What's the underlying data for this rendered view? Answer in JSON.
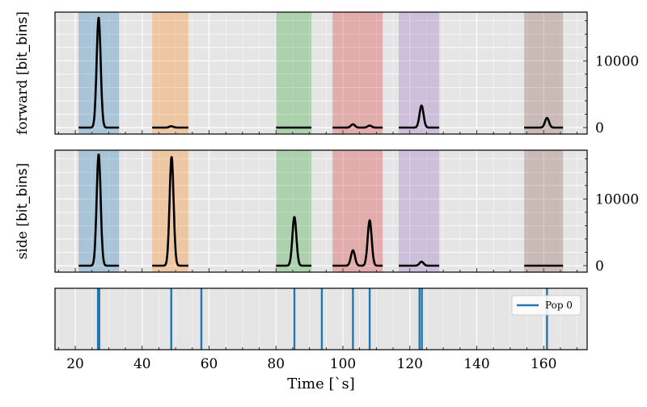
{
  "chart_data": [
    {
      "type": "line",
      "ylabel": "forward [bit_bins]",
      "ylabel_parts": [
        "forward [",
        "bit_bins",
        "]"
      ],
      "ylim": [
        -970,
        17300
      ],
      "yticks": [
        0,
        10000
      ],
      "ytick_labels": [
        "0",
        "10000"
      ],
      "peaks": [
        {
          "x": 27.0,
          "height": 16500
        },
        {
          "x": 48.7,
          "height": 200
        },
        {
          "x": 103.0,
          "height": 500
        },
        {
          "x": 108.0,
          "height": 300
        },
        {
          "x": 123.5,
          "height": 3300
        },
        {
          "x": 161.0,
          "height": 1450
        }
      ]
    },
    {
      "type": "line",
      "ylabel": "side [bit_bins]",
      "ylabel_parts": [
        "side [",
        "bit_bins",
        "]"
      ],
      "ylim": [
        -970,
        17300
      ],
      "yticks": [
        0,
        10000
      ],
      "ytick_labels": [
        "0",
        "10000"
      ],
      "peaks": [
        {
          "x": 27.0,
          "height": 16700
        },
        {
          "x": 48.8,
          "height": 16300
        },
        {
          "x": 85.5,
          "height": 7300
        },
        {
          "x": 103.0,
          "height": 2300
        },
        {
          "x": 108.0,
          "height": 6800
        },
        {
          "x": 123.5,
          "height": 600
        }
      ]
    },
    {
      "type": "event",
      "xlabel": "Time [`s]",
      "legend": {
        "label": "Pop 0",
        "placement": "top-right"
      },
      "events": [
        26.8,
        27.2,
        48.7,
        57.7,
        85.5,
        93.7,
        103.0,
        108.0,
        122.9,
        123.6,
        161.0
      ]
    }
  ],
  "shared": {
    "xlim": [
      13.95,
      173.0
    ],
    "xticks": [
      20,
      40,
      60,
      80,
      100,
      120,
      140,
      160
    ],
    "bands": [
      {
        "start": 21.0,
        "end": 33.1,
        "color": "#1f77b4"
      },
      {
        "start": 43.0,
        "end": 53.8,
        "color": "#ff7f0e"
      },
      {
        "start": 80.0,
        "end": 90.6,
        "color": "#2ca02c"
      },
      {
        "start": 96.9,
        "end": 111.9,
        "color": "#d62728"
      },
      {
        "start": 116.7,
        "end": 128.8,
        "color": "#9467bd"
      },
      {
        "start": 154.2,
        "end": 165.8,
        "color": "#8c564b"
      }
    ],
    "event_color": "#1f77b4",
    "background": "#e5e5e5"
  }
}
